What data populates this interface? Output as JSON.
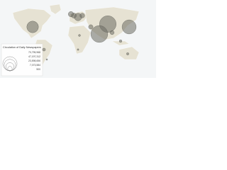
{
  "chart_data": {
    "type": "bubble-map",
    "legend_title": "Circulation of Daily Newspapers",
    "legend_sizes": [
      {
        "value": 70795968,
        "label": "70,795,968"
      },
      {
        "value": 47197312,
        "label": "47,197,312"
      },
      {
        "value": 23598656,
        "label": "23,598,656"
      },
      {
        "value": 7073584,
        "label": "7,073,584"
      },
      {
        "value": 500,
        "label": "500"
      }
    ],
    "values": [
      98000000,
      70000000,
      100000000,
      48000000,
      20000000,
      9000000,
      8000000,
      10000000,
      6000000,
      7000000,
      3000000,
      2500000,
      1500000,
      2000000,
      1000000,
      800000
    ],
    "color": "#6b6b63"
  }
}
